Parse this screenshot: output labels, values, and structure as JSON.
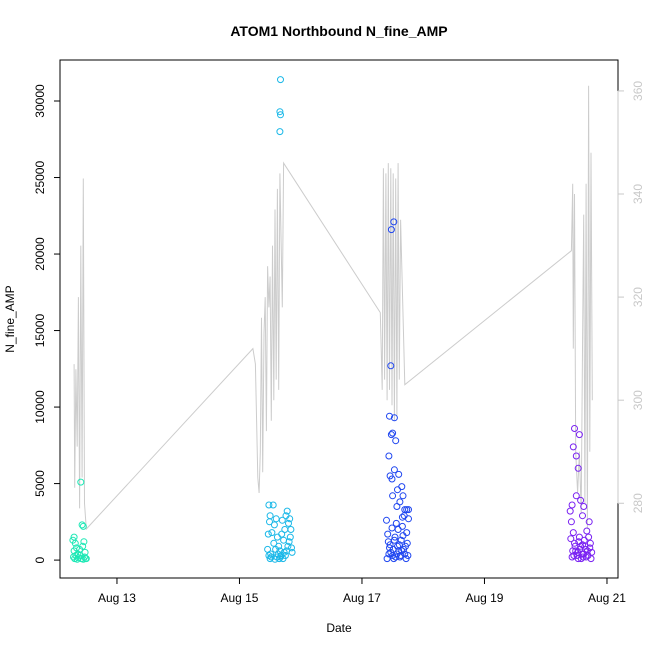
{
  "chart_data": {
    "type": "scatter",
    "title": "ATOM1 Northbound N_fine_AMP",
    "xlabel": "Date",
    "ylabel": "N_fine_AMP",
    "x_ticks": [
      "Aug 13",
      "Aug 15",
      "Aug 17",
      "Aug 19",
      "Aug 21"
    ],
    "x_tick_days": [
      13,
      15,
      17,
      19,
      21
    ],
    "xlim": [
      12.07,
      21.18
    ],
    "y_ticks": [
      0,
      5000,
      10000,
      15000,
      20000,
      25000,
      30000
    ],
    "y_tick_labels": [
      "0",
      "5000",
      "10000",
      "15000",
      "20000",
      "25000",
      "30000"
    ],
    "ylim": [
      -1170,
      32680
    ],
    "y2_ticks": [
      280,
      300,
      320,
      340,
      360
    ],
    "y2_tick_labels": [
      "280",
      "300",
      "320",
      "340",
      "360"
    ],
    "y2lim": [
      265.5,
      366.0
    ],
    "colors": {
      "series1": "#1de8b5",
      "series2": "#1ab8e8",
      "series3": "#1f46f0",
      "series4": "#7a22f2",
      "line": "#cccccc",
      "secondary_axis": "#c8c8c8"
    },
    "series": [
      {
        "color": "#1de8b5",
        "points": [
          [
            12.28,
            1300
          ],
          [
            12.3,
            1500
          ],
          [
            12.32,
            1100
          ],
          [
            12.3,
            600
          ],
          [
            12.29,
            200
          ],
          [
            12.31,
            100
          ],
          [
            12.33,
            300
          ],
          [
            12.35,
            50
          ],
          [
            12.37,
            150
          ],
          [
            12.4,
            300
          ],
          [
            12.42,
            100
          ],
          [
            12.45,
            50
          ],
          [
            12.47,
            200
          ],
          [
            12.49,
            100
          ],
          [
            12.43,
            2300
          ],
          [
            12.45,
            2200
          ],
          [
            12.41,
            5100
          ],
          [
            12.44,
            900
          ],
          [
            12.46,
            1200
          ],
          [
            12.48,
            500
          ],
          [
            12.5,
            100
          ],
          [
            12.39,
            700
          ],
          [
            12.36,
            400
          ],
          [
            12.34,
            800
          ]
        ]
      },
      {
        "color": "#1ab8e8",
        "points": [
          [
            15.67,
            31400
          ],
          [
            15.66,
            29300
          ],
          [
            15.67,
            29100
          ],
          [
            15.66,
            28000
          ],
          [
            15.48,
            3600
          ],
          [
            15.5,
            2900
          ],
          [
            15.49,
            2500
          ],
          [
            15.47,
            1700
          ],
          [
            15.46,
            700
          ],
          [
            15.48,
            300
          ],
          [
            15.5,
            100
          ],
          [
            15.52,
            200
          ],
          [
            15.55,
            3600
          ],
          [
            15.57,
            2300
          ],
          [
            15.6,
            2700
          ],
          [
            15.62,
            1500
          ],
          [
            15.64,
            900
          ],
          [
            15.66,
            600
          ],
          [
            15.68,
            300
          ],
          [
            15.7,
            2600
          ],
          [
            15.72,
            1300
          ],
          [
            15.74,
            2000
          ],
          [
            15.76,
            2900
          ],
          [
            15.78,
            3200
          ],
          [
            15.8,
            2400
          ],
          [
            15.82,
            2700
          ],
          [
            15.84,
            2000
          ],
          [
            15.85,
            800
          ],
          [
            15.86,
            500
          ],
          [
            15.83,
            1500
          ],
          [
            15.79,
            900
          ],
          [
            15.75,
            300
          ],
          [
            15.71,
            100
          ],
          [
            15.67,
            200
          ],
          [
            15.63,
            400
          ],
          [
            15.59,
            700
          ],
          [
            15.56,
            1100
          ],
          [
            15.53,
            1800
          ],
          [
            15.69,
            1700
          ],
          [
            15.81,
            1200
          ],
          [
            15.73,
            500
          ],
          [
            15.61,
            200
          ],
          [
            15.58,
            50
          ],
          [
            15.65,
            100
          ],
          [
            15.77,
            600
          ],
          [
            15.51,
            400
          ]
        ]
      },
      {
        "color": "#1f46f0",
        "points": [
          [
            17.48,
            21600
          ],
          [
            17.52,
            22100
          ],
          [
            17.47,
            12700
          ],
          [
            17.45,
            9400
          ],
          [
            17.53,
            9300
          ],
          [
            17.48,
            8200
          ],
          [
            17.5,
            8300
          ],
          [
            17.55,
            7800
          ],
          [
            17.44,
            6800
          ],
          [
            17.53,
            5900
          ],
          [
            17.46,
            5500
          ],
          [
            17.49,
            5300
          ],
          [
            17.6,
            5600
          ],
          [
            17.58,
            4600
          ],
          [
            17.65,
            4800
          ],
          [
            17.5,
            4200
          ],
          [
            17.62,
            3800
          ],
          [
            17.57,
            3500
          ],
          [
            17.67,
            4200
          ],
          [
            17.7,
            3300
          ],
          [
            17.4,
            2600
          ],
          [
            17.42,
            1700
          ],
          [
            17.43,
            1200
          ],
          [
            17.45,
            800
          ],
          [
            17.47,
            500
          ],
          [
            17.5,
            300
          ],
          [
            17.52,
            100
          ],
          [
            17.54,
            1500
          ],
          [
            17.56,
            2400
          ],
          [
            17.58,
            900
          ],
          [
            17.6,
            600
          ],
          [
            17.62,
            200
          ],
          [
            17.64,
            1300
          ],
          [
            17.66,
            2200
          ],
          [
            17.68,
            700
          ],
          [
            17.7,
            400
          ],
          [
            17.72,
            100
          ],
          [
            17.74,
            1100
          ],
          [
            17.76,
            2700
          ],
          [
            17.75,
            300
          ],
          [
            17.73,
            1800
          ],
          [
            17.71,
            900
          ],
          [
            17.69,
            2900
          ],
          [
            17.67,
            1600
          ],
          [
            17.65,
            600
          ],
          [
            17.63,
            300
          ],
          [
            17.61,
            1000
          ],
          [
            17.59,
            2000
          ],
          [
            17.57,
            400
          ],
          [
            17.55,
            200
          ],
          [
            17.53,
            1300
          ],
          [
            17.51,
            700
          ],
          [
            17.49,
            2100
          ],
          [
            17.46,
            1000
          ],
          [
            17.44,
            400
          ],
          [
            17.41,
            100
          ],
          [
            17.73,
            3300
          ],
          [
            17.76,
            3300
          ],
          [
            17.66,
            2800
          ]
        ]
      },
      {
        "color": "#7a22f2",
        "points": [
          [
            20.47,
            8600
          ],
          [
            20.55,
            8200
          ],
          [
            20.45,
            7400
          ],
          [
            20.5,
            6800
          ],
          [
            20.53,
            6000
          ],
          [
            20.43,
            3600
          ],
          [
            20.5,
            4200
          ],
          [
            20.57,
            3900
          ],
          [
            20.62,
            3500
          ],
          [
            20.6,
            2900
          ],
          [
            20.4,
            3200
          ],
          [
            20.42,
            2500
          ],
          [
            20.45,
            1800
          ],
          [
            20.47,
            1100
          ],
          [
            20.49,
            600
          ],
          [
            20.51,
            300
          ],
          [
            20.53,
            100
          ],
          [
            20.55,
            1500
          ],
          [
            20.57,
            900
          ],
          [
            20.59,
            400
          ],
          [
            20.61,
            200
          ],
          [
            20.63,
            1300
          ],
          [
            20.65,
            700
          ],
          [
            20.67,
            1900
          ],
          [
            20.69,
            300
          ],
          [
            20.71,
            2500
          ],
          [
            20.73,
            1100
          ],
          [
            20.75,
            500
          ],
          [
            20.74,
            100
          ],
          [
            20.72,
            800
          ],
          [
            20.7,
            1500
          ],
          [
            20.68,
            600
          ],
          [
            20.66,
            200
          ],
          [
            20.64,
            900
          ],
          [
            20.62,
            400
          ],
          [
            20.6,
            1000
          ],
          [
            20.58,
            100
          ],
          [
            20.56,
            700
          ],
          [
            20.54,
            1200
          ],
          [
            20.52,
            500
          ],
          [
            20.48,
            900
          ],
          [
            20.46,
            300
          ],
          [
            20.44,
            600
          ],
          [
            20.41,
            1400
          ],
          [
            20.43,
            200
          ]
        ]
      }
    ],
    "line": [
      [
        12.3,
        307
      ],
      [
        12.31,
        283
      ],
      [
        12.33,
        306
      ],
      [
        12.35,
        291
      ],
      [
        12.37,
        320
      ],
      [
        12.39,
        279
      ],
      [
        12.41,
        330
      ],
      [
        12.43,
        285
      ],
      [
        12.45,
        343
      ],
      [
        12.47,
        280
      ],
      [
        12.5,
        275
      ],
      [
        15.22,
        310
      ],
      [
        15.26,
        307
      ],
      [
        15.3,
        285
      ],
      [
        15.32,
        282
      ],
      [
        15.34,
        290
      ],
      [
        15.36,
        316
      ],
      [
        15.38,
        286
      ],
      [
        15.4,
        313
      ],
      [
        15.42,
        320
      ],
      [
        15.44,
        294
      ],
      [
        15.46,
        326
      ],
      [
        15.48,
        318
      ],
      [
        15.5,
        324
      ],
      [
        15.52,
        296
      ],
      [
        15.54,
        330
      ],
      [
        15.56,
        300
      ],
      [
        15.58,
        337
      ],
      [
        15.6,
        304
      ],
      [
        15.62,
        341
      ],
      [
        15.64,
        302
      ],
      [
        15.66,
        344
      ],
      [
        15.7,
        318
      ],
      [
        15.72,
        346
      ],
      [
        17.3,
        317
      ],
      [
        17.33,
        302
      ],
      [
        17.35,
        345
      ],
      [
        17.37,
        304
      ],
      [
        17.39,
        344
      ],
      [
        17.41,
        300
      ],
      [
        17.43,
        346
      ],
      [
        17.45,
        302
      ],
      [
        17.47,
        345
      ],
      [
        17.49,
        299
      ],
      [
        17.51,
        344
      ],
      [
        17.53,
        296
      ],
      [
        17.55,
        343
      ],
      [
        17.57,
        297
      ],
      [
        17.59,
        346
      ],
      [
        17.61,
        304
      ],
      [
        17.63,
        335
      ],
      [
        17.7,
        303
      ],
      [
        20.42,
        329
      ],
      [
        20.44,
        342
      ],
      [
        20.45,
        310
      ],
      [
        20.47,
        340
      ],
      [
        20.49,
        290
      ],
      [
        20.52,
        282
      ],
      [
        20.55,
        290
      ],
      [
        20.58,
        278
      ],
      [
        20.6,
        310
      ],
      [
        20.62,
        336
      ],
      [
        20.64,
        280
      ],
      [
        20.66,
        342
      ],
      [
        20.68,
        275
      ],
      [
        20.7,
        361
      ],
      [
        20.72,
        290
      ],
      [
        20.74,
        348
      ],
      [
        20.76,
        300
      ]
    ]
  }
}
